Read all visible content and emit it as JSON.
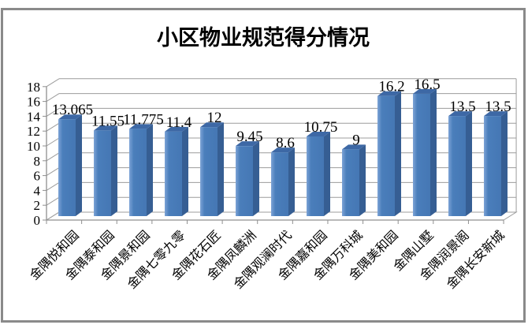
{
  "title": "小区物业规范得分情况",
  "chart_data": {
    "type": "bar",
    "variant": "3d-clustered-column",
    "title": "小区物业规范得分情况",
    "categories": [
      "金隅悦和园",
      "金隅泰和园",
      "金隅景和园",
      "金隅七零九零",
      "金隅花石匠",
      "金隅凤麟洲",
      "金隅观澜时代",
      "金隅嘉和园",
      "金隅万科城",
      "金隅美和园",
      "金隅山墅",
      "金隅润景阁",
      "金隅长安新城"
    ],
    "values": [
      13.065,
      11.55,
      11.775,
      11.4,
      12,
      9.45,
      8.6,
      10.75,
      9,
      16.2,
      16.5,
      13.5,
      13.5
    ],
    "value_labels": [
      "13.065",
      "11.55",
      "11.775",
      "11.4",
      "12",
      "9.45",
      "8.6",
      "10.75",
      "9",
      "16.2",
      "16.5",
      "13.5",
      "13.5"
    ],
    "xlabel": "",
    "ylabel": "",
    "y_axis": {
      "min": 0,
      "max": 18,
      "step": 2,
      "tick_labels": [
        "0",
        "2",
        "4",
        "6",
        "8",
        "10",
        "12",
        "14",
        "16",
        "18"
      ]
    },
    "grid": true,
    "legend": "none",
    "colors": {
      "bar_front": "#4a7ebb",
      "bar_front_light": "#7da3d6",
      "bar_side": "#365e93",
      "bar_top": "#3d68a5",
      "gridline": "#9c9c9c",
      "axis_line": "#8f8f8f",
      "frame_border": "#8a8a8a",
      "text": "#000000",
      "background": "#ffffff"
    }
  }
}
